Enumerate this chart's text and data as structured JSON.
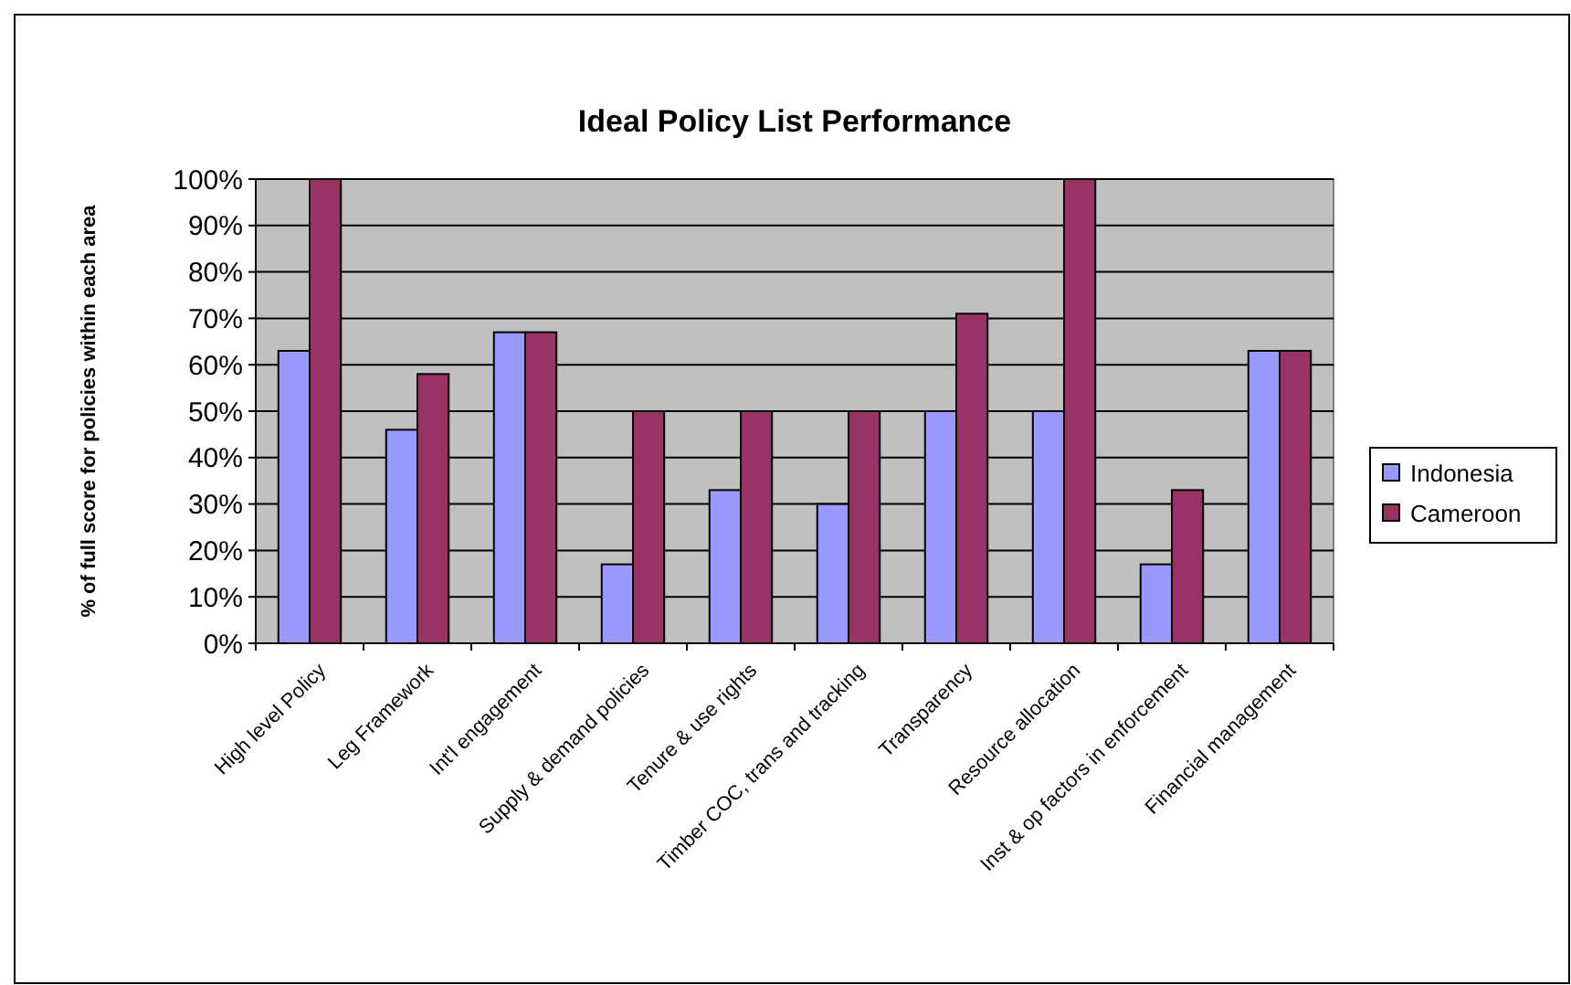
{
  "chart_data": {
    "type": "bar",
    "title": "Ideal Policy List Performance",
    "ylabel": "% of full score for policies within each area",
    "categories": [
      "High level Policy",
      "Leg Framework",
      "Int'l engagement",
      "Supply & demand policies",
      "Tenure & use rights",
      "Timber COC, trans and tracking",
      "Transparency",
      "Resource allocation",
      "Inst & op factors in enforcement",
      "Financial management"
    ],
    "series": [
      {
        "name": "Indonesia",
        "color": "#9999ff",
        "values": [
          63,
          46,
          67,
          17,
          33,
          30,
          50,
          50,
          17,
          63
        ]
      },
      {
        "name": "Cameroon",
        "color": "#993366",
        "values": [
          100,
          58,
          67,
          50,
          50,
          50,
          71,
          100,
          33,
          63
        ]
      }
    ],
    "ylim": [
      0,
      100
    ],
    "yticks": [
      {
        "value": 0,
        "label": "0%"
      },
      {
        "value": 10,
        "label": "10%"
      },
      {
        "value": 20,
        "label": "20%"
      },
      {
        "value": 30,
        "label": "30%"
      },
      {
        "value": 40,
        "label": "40%"
      },
      {
        "value": 50,
        "label": "50%"
      },
      {
        "value": 60,
        "label": "60%"
      },
      {
        "value": 70,
        "label": "70%"
      },
      {
        "value": 80,
        "label": "80%"
      },
      {
        "value": 90,
        "label": "90%"
      },
      {
        "value": 100,
        "label": "100%"
      }
    ],
    "grid": "y",
    "legend": "right"
  }
}
